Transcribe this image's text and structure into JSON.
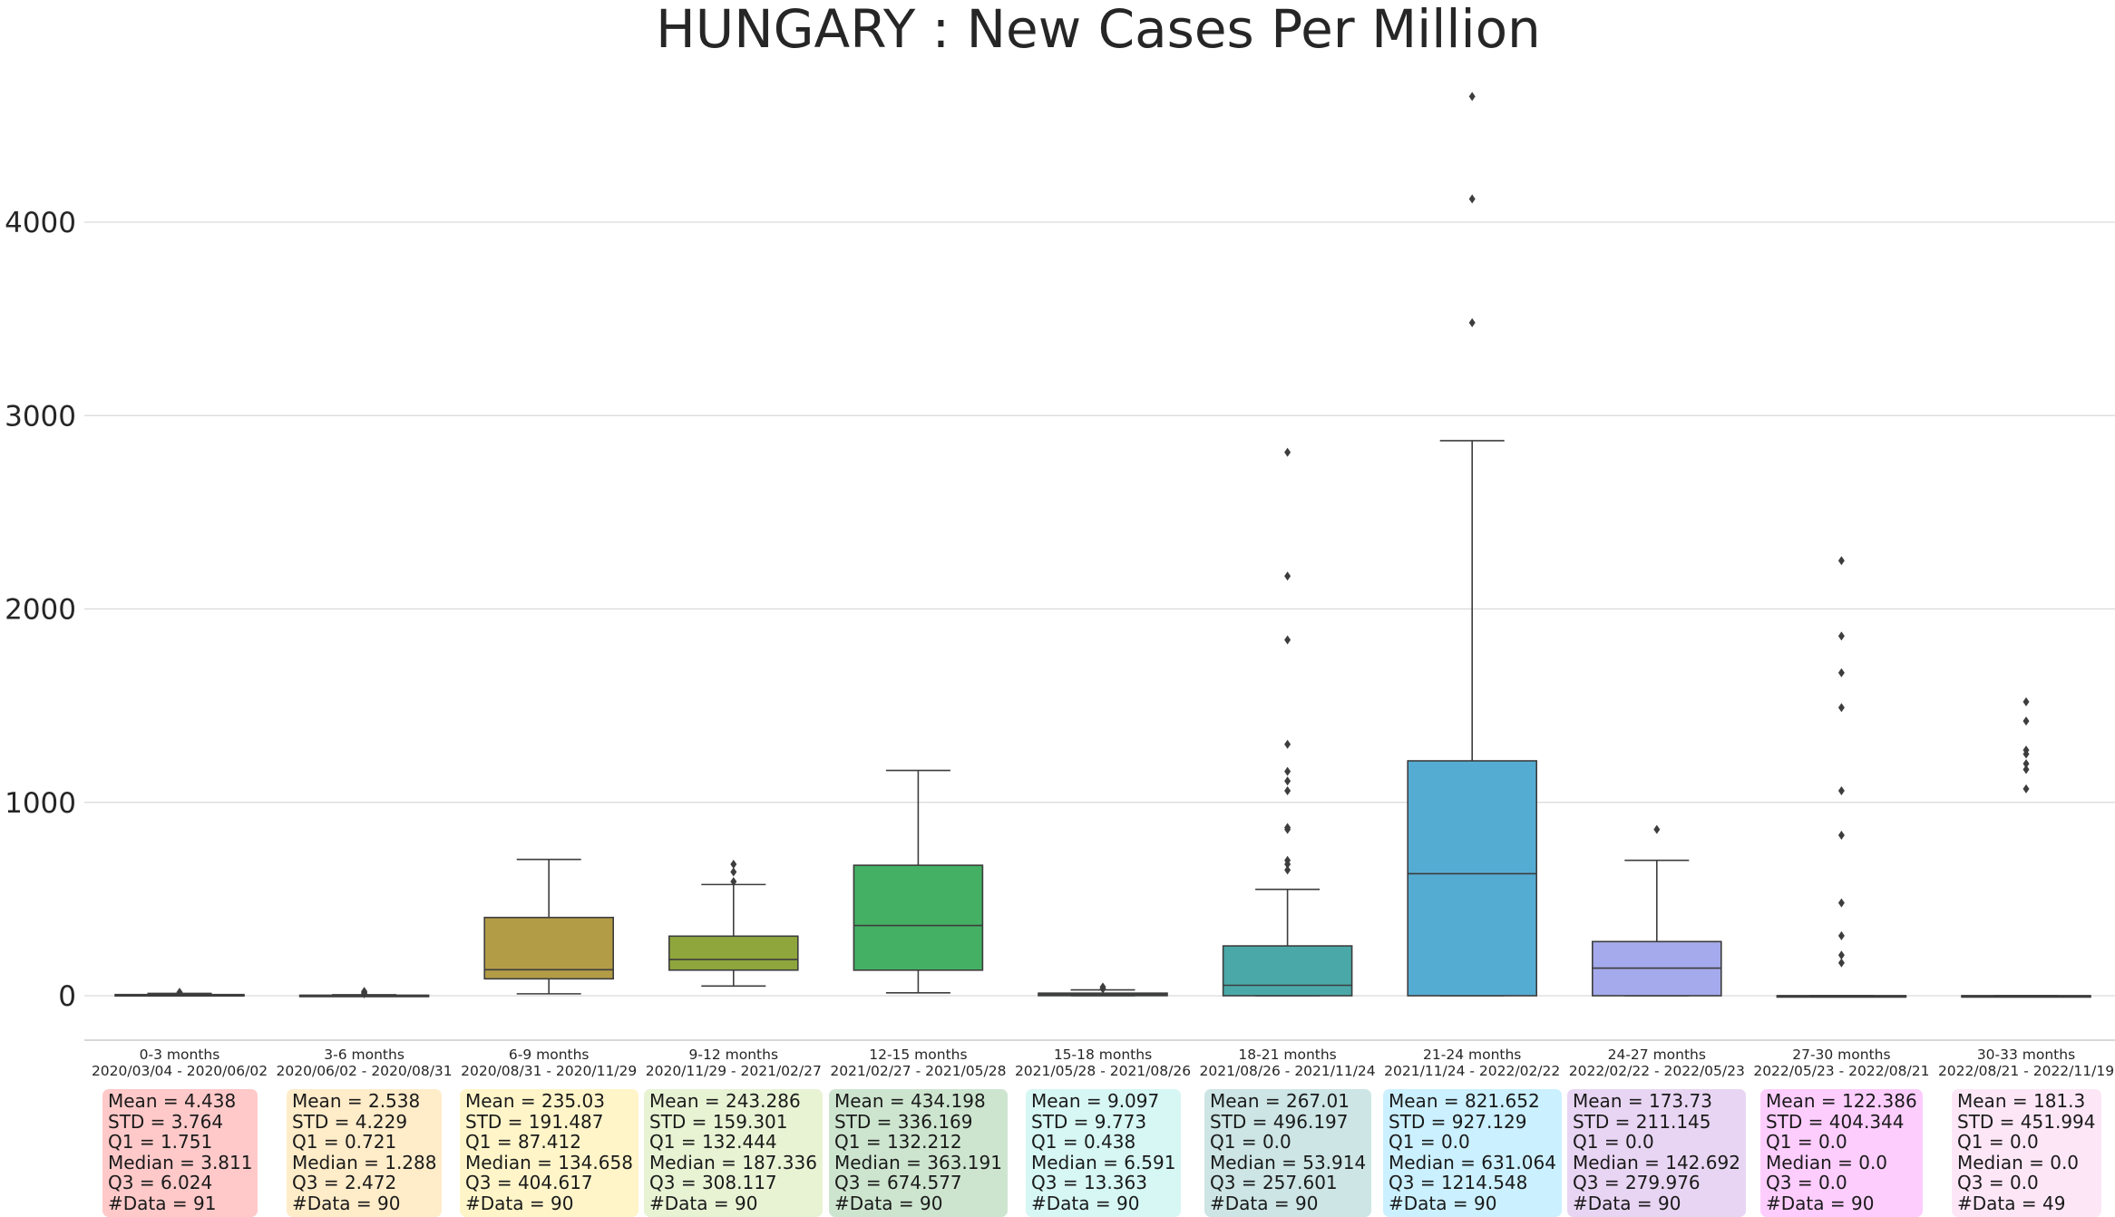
{
  "chart_data": {
    "type": "box",
    "title": "HUNGARY : New Cases Per Million",
    "xlabel": "",
    "ylabel": "",
    "ylim": [
      -230,
      4800
    ],
    "yticks": [
      0,
      1000,
      2000,
      3000,
      4000
    ],
    "grid": true,
    "categories": [
      {
        "label": "0-3 months",
        "range": "2020/03/04 - 2020/06/02",
        "color": "#c44e52",
        "q1": 1.751,
        "median": 3.811,
        "q3": 6.024,
        "whisker_low": 0,
        "whisker_high": 12,
        "outliers": [
          18
        ],
        "stats": {
          "mean": "4.438",
          "std": "3.764",
          "q1": "1.751",
          "median": "3.811",
          "q3": "6.024",
          "n": "91"
        },
        "box_color": "#ffc9c9"
      },
      {
        "label": "3-6 months",
        "range": "2020/06/02 - 2020/08/31",
        "color": "#c8a95f",
        "q1": 0.721,
        "median": 1.288,
        "q3": 2.472,
        "whisker_low": 0,
        "whisker_high": 5,
        "outliers": [
          10,
          15,
          22
        ],
        "stats": {
          "mean": "2.538",
          "std": "4.229",
          "q1": "0.721",
          "median": "1.288",
          "q3": "2.472",
          "n": "90"
        },
        "box_color": "#ffecc9"
      },
      {
        "label": "6-9 months",
        "range": "2020/08/31 - 2020/11/29",
        "color": "#b39c46",
        "q1": 87.412,
        "median": 134.658,
        "q3": 404.617,
        "whisker_low": 10,
        "whisker_high": 705,
        "outliers": [],
        "stats": {
          "mean": "235.03",
          "std": "191.487",
          "q1": "87.412",
          "median": "134.658",
          "q3": "404.617",
          "n": "90"
        },
        "box_color": "#fff5c9"
      },
      {
        "label": "9-12 months",
        "range": "2020/11/29 - 2021/02/27",
        "color": "#8fa63d",
        "q1": 132.444,
        "median": 187.336,
        "q3": 308.117,
        "whisker_low": 50,
        "whisker_high": 575,
        "outliers": [
          590,
          640,
          680
        ],
        "stats": {
          "mean": "243.286",
          "std": "159.301",
          "q1": "132.444",
          "median": "187.336",
          "q3": "308.117",
          "n": "90"
        },
        "box_color": "#e8f3d4"
      },
      {
        "label": "12-15 months",
        "range": "2021/02/27 - 2021/05/28",
        "color": "#44b064",
        "q1": 132.212,
        "median": 363.191,
        "q3": 674.577,
        "whisker_low": 15,
        "whisker_high": 1165,
        "outliers": [],
        "stats": {
          "mean": "434.198",
          "std": "336.169",
          "q1": "132.212",
          "median": "363.191",
          "q3": "674.577",
          "n": "90"
        },
        "box_color": "#cde5cf"
      },
      {
        "label": "15-18 months",
        "range": "2021/05/28 - 2021/08/26",
        "color": "#3fae8e",
        "q1": 0.438,
        "median": 6.591,
        "q3": 13.363,
        "whisker_low": 0,
        "whisker_high": 30,
        "outliers": [
          35,
          45
        ],
        "stats": {
          "mean": "9.097",
          "std": "9.773",
          "q1": "0.438",
          "median": "6.591",
          "q3": "13.363",
          "n": "90"
        },
        "box_color": "#d6f7f4"
      },
      {
        "label": "18-21 months",
        "range": "2021/08/26 - 2021/11/24",
        "color": "#4aa9a8",
        "q1": 0.0,
        "median": 53.914,
        "q3": 257.601,
        "whisker_low": 0,
        "whisker_high": 550,
        "outliers": [
          650,
          680,
          700,
          860,
          870,
          1060,
          1110,
          1160,
          1300,
          1840,
          2170,
          2810
        ],
        "stats": {
          "mean": "267.01",
          "std": "496.197",
          "q1": "0.0",
          "median": "53.914",
          "q3": "257.601",
          "n": "90"
        },
        "box_color": "#cde5e5"
      },
      {
        "label": "21-24 months",
        "range": "2021/11/24 - 2022/02/22",
        "color": "#55acd3",
        "q1": 0.0,
        "median": 631.064,
        "q3": 1214.548,
        "whisker_low": 0,
        "whisker_high": 2870,
        "outliers": [
          3480,
          4120,
          4650
        ],
        "stats": {
          "mean": "821.652",
          "std": "927.129",
          "q1": "0.0",
          "median": "631.064",
          "q3": "1214.548",
          "n": "90"
        },
        "box_color": "#cbf0ff"
      },
      {
        "label": "24-27 months",
        "range": "2022/02/22 - 2022/05/23",
        "color": "#a4aaeb",
        "q1": 0.0,
        "median": 142.692,
        "q3": 279.976,
        "whisker_low": 0,
        "whisker_high": 700,
        "outliers": [
          860
        ],
        "stats": {
          "mean": "173.73",
          "std": "211.145",
          "q1": "0.0",
          "median": "142.692",
          "q3": "279.976",
          "n": "90"
        },
        "box_color": "#e8d5f3"
      },
      {
        "label": "27-30 months",
        "range": "2022/05/23 - 2022/08/21",
        "color": "#d88de6",
        "q1": 0.0,
        "median": 0.0,
        "q3": 0.0,
        "whisker_low": 0,
        "whisker_high": 0,
        "outliers": [
          170,
          210,
          310,
          480,
          830,
          1060,
          1490,
          1670,
          1860,
          2250
        ],
        "stats": {
          "mean": "122.386",
          "std": "404.344",
          "q1": "0.0",
          "median": "0.0",
          "q3": "0.0",
          "n": "90"
        },
        "box_color": "#fdcdfd"
      },
      {
        "label": "30-33 months",
        "range": "2022/08/21 - 2022/11/19",
        "color": "#e28fc8",
        "q1": 0.0,
        "median": 0.0,
        "q3": 0.0,
        "whisker_low": 0,
        "whisker_high": 0,
        "outliers": [
          1070,
          1170,
          1200,
          1250,
          1270,
          1420,
          1520
        ],
        "stats": {
          "mean": "181.3",
          "std": "451.994",
          "q1": "0.0",
          "median": "0.0",
          "q3": "0.0",
          "n": "49"
        },
        "box_color": "#fde7f7"
      }
    ]
  }
}
